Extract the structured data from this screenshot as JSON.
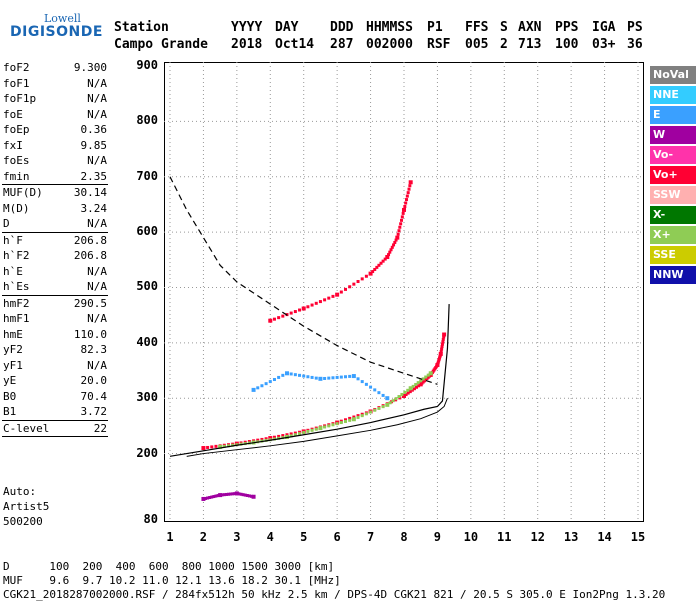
{
  "logo": {
    "line1": "Lowell",
    "line2": "DIGISONDE"
  },
  "header": {
    "labels": [
      "Station",
      "YYYY",
      "DAY",
      "DDD",
      "HHMMSS",
      "P1",
      "FFS",
      "S",
      "AXN",
      "PPS",
      "IGA",
      "PS"
    ],
    "values": [
      "Campo Grande",
      "2018",
      "Oct14",
      "287",
      "002000",
      "RSF",
      "005",
      "2",
      "713",
      "100",
      "03+",
      "36"
    ]
  },
  "params": [
    {
      "label": "foF2",
      "value": "9.300"
    },
    {
      "label": "foF1",
      "value": "N/A"
    },
    {
      "label": "foF1p",
      "value": "N/A"
    },
    {
      "label": "foE",
      "value": "N/A"
    },
    {
      "label": "foEp",
      "value": "0.36"
    },
    {
      "label": "fxI",
      "value": "9.85"
    },
    {
      "label": "foEs",
      "value": "N/A"
    },
    {
      "label": "fmin",
      "value": "2.35"
    },
    {
      "sep": true
    },
    {
      "label": "MUF(D)",
      "value": "30.14"
    },
    {
      "label": "M(D)",
      "value": "3.24"
    },
    {
      "label": "D",
      "value": "N/A"
    },
    {
      "sep": true
    },
    {
      "label": "h`F",
      "value": "206.8"
    },
    {
      "label": "h`F2",
      "value": "206.8"
    },
    {
      "label": "h`E",
      "value": "N/A"
    },
    {
      "label": "h`Es",
      "value": "N/A"
    },
    {
      "sep": true
    },
    {
      "label": "hmF2",
      "value": "290.5"
    },
    {
      "label": "hmF1",
      "value": "N/A"
    },
    {
      "label": "hmE",
      "value": "110.0"
    },
    {
      "label": "yF2",
      "value": "82.3"
    },
    {
      "label": "yF1",
      "value": "N/A"
    },
    {
      "label": "yE",
      "value": "20.0"
    },
    {
      "label": "B0",
      "value": "70.4"
    },
    {
      "label": "B1",
      "value": "3.72"
    },
    {
      "sep": true
    },
    {
      "label": "C-level",
      "value": "22"
    },
    {
      "sep": true
    }
  ],
  "auto_block": [
    "Auto:",
    "Artist5",
    "500200"
  ],
  "legend": [
    {
      "label": "NoVal",
      "color": "#808080"
    },
    {
      "label": "NNE",
      "color": "#33ccff"
    },
    {
      "label": "E",
      "color": "#3aa0ff"
    },
    {
      "label": "W",
      "color": "#a000a0"
    },
    {
      "label": "Vo-",
      "color": "#ff33aa"
    },
    {
      "label": "Vo+",
      "color": "#ff0033"
    },
    {
      "label": "SSW",
      "color": "#ffb0b0"
    },
    {
      "label": "X-",
      "color": "#007700"
    },
    {
      "label": "X+",
      "color": "#8fcc55"
    },
    {
      "label": "SSE",
      "color": "#cccc00"
    },
    {
      "label": "NNW",
      "color": "#1010aa"
    }
  ],
  "footer": {
    "line1": "D      100  200  400  600  800 1000 1500 3000 [km]",
    "line2": "MUF    9.6  9.7 10.2 11.0 12.1 13.6 18.2 30.1 [MHz]",
    "line3": "CGK21_2018287002000.RSF / 284fx512h 50 kHz 2.5 km / DPS-4D CGK21 821 / 20.5 S 305.0 E Ion2Png 1.3.20"
  },
  "chart_data": {
    "type": "scatter",
    "xlim": [
      1,
      15
    ],
    "ylim": [
      80,
      900
    ],
    "x_ticks": [
      1,
      2,
      3,
      4,
      5,
      6,
      7,
      8,
      9,
      10,
      11,
      12,
      13,
      14,
      15
    ],
    "y_ticks": [
      80,
      200,
      300,
      400,
      500,
      600,
      700,
      800,
      900
    ],
    "grid": true,
    "series": [
      {
        "name": "Vo+",
        "x": [
          2.0,
          3.0,
          4.0,
          5.0,
          6.0,
          7.0,
          8.0,
          8.5,
          8.8,
          9.0,
          9.1,
          9.2
        ],
        "y": [
          210,
          218,
          228,
          240,
          256,
          276,
          304,
          325,
          342,
          360,
          380,
          415
        ]
      },
      {
        "name": "Vo+",
        "x": [
          4.0,
          5.0,
          6.0,
          7.0,
          7.5,
          7.8,
          8.0,
          8.2
        ],
        "y": [
          440,
          462,
          487,
          525,
          555,
          590,
          640,
          690
        ]
      },
      {
        "name": "X+",
        "x": [
          2.5,
          3.5,
          4.5,
          5.5,
          6.5,
          7.5,
          8.2,
          8.8
        ],
        "y": [
          212,
          220,
          230,
          246,
          262,
          288,
          318,
          345
        ]
      },
      {
        "name": "E",
        "x": [
          3.5,
          4.5,
          5.5,
          6.5,
          7.5
        ],
        "y": [
          315,
          345,
          335,
          340,
          300
        ]
      },
      {
        "name": "W",
        "x": [
          2.0,
          2.5,
          3.0,
          3.5
        ],
        "y": [
          118,
          125,
          128,
          122
        ]
      }
    ],
    "model_profile": {
      "x": [
        1.0,
        2.0,
        3.0,
        4.0,
        5.0,
        6.0,
        7.0,
        8.0,
        8.6,
        9.0,
        9.15,
        9.3,
        9.35
      ],
      "y": [
        195,
        205,
        215,
        224,
        234,
        244,
        256,
        270,
        280,
        285,
        295,
        390,
        470
      ]
    },
    "model_curve": {
      "x": [
        1.5,
        2.0,
        3.0,
        4.0,
        5.0,
        6.0,
        7.0,
        7.8,
        8.5,
        9.0,
        9.2,
        9.3
      ],
      "y": [
        195,
        200,
        207,
        214,
        222,
        232,
        242,
        252,
        263,
        275,
        285,
        300
      ]
    },
    "dashed_curve": {
      "x": [
        1.0,
        1.5,
        2.0,
        2.5,
        3.0,
        4.0,
        5.0,
        6.0,
        7.0,
        8.0,
        9.0
      ],
      "y": [
        700,
        640,
        590,
        540,
        510,
        470,
        430,
        395,
        365,
        345,
        325
      ]
    }
  }
}
